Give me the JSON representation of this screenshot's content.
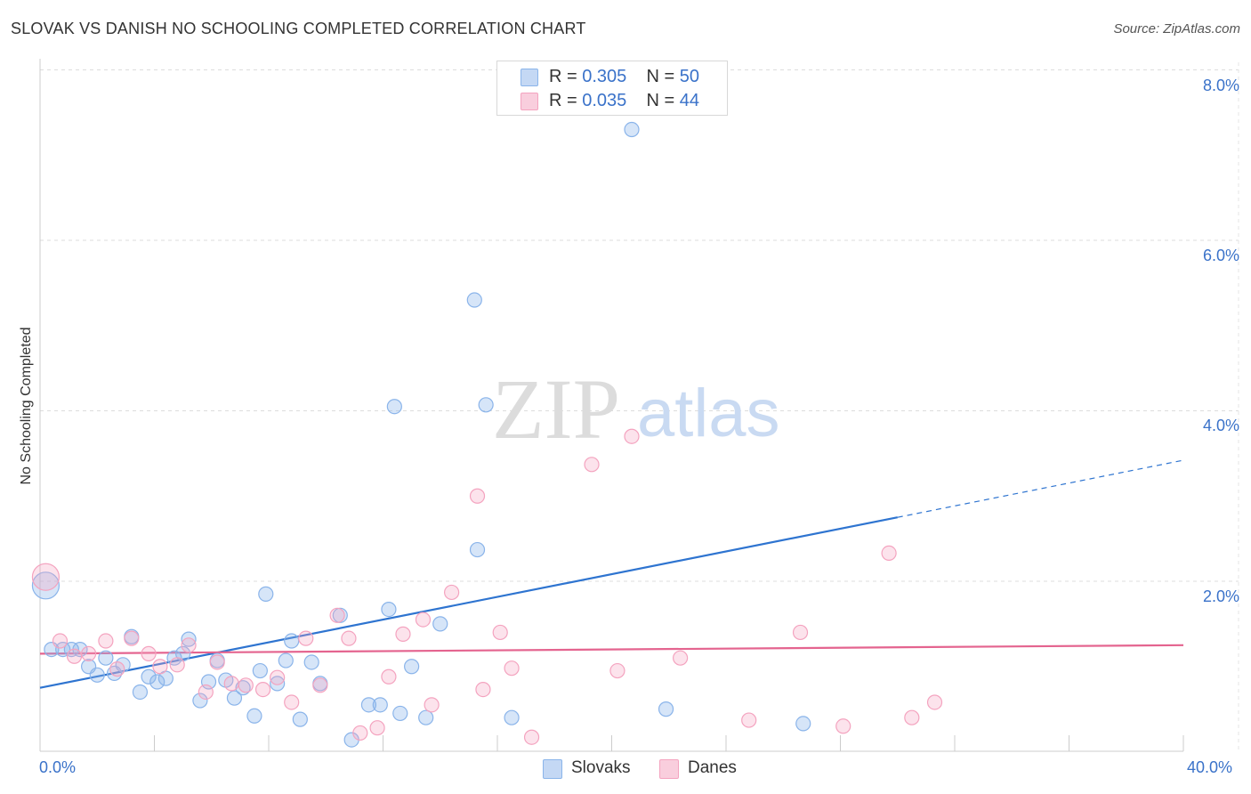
{
  "title": "SLOVAK VS DANISH NO SCHOOLING COMPLETED CORRELATION CHART",
  "source": "Source: ZipAtlas.com",
  "watermark": {
    "zip": "ZIP",
    "atlas": "atlas"
  },
  "legend": {
    "rows": [
      {
        "r_label": "R = ",
        "r_value": "0.305",
        "n_label": "N = ",
        "n_value": "50"
      },
      {
        "r_label": "R = ",
        "r_value": "0.035",
        "n_label": "N = ",
        "n_value": "44"
      }
    ]
  },
  "bottom_legend": [
    "Slovaks",
    "Danes"
  ],
  "chart_data": {
    "type": "scatter",
    "title": "SLOVAK VS DANISH NO SCHOOLING COMPLETED CORRELATION CHART",
    "xlabel": "",
    "ylabel": "No Schooling Completed",
    "xlim": [
      0,
      40
    ],
    "ylim": [
      0,
      8.3
    ],
    "x_tick_labels": [
      "0.0%",
      "40.0%"
    ],
    "y_ticks": [
      2,
      4,
      6,
      8
    ],
    "y_tick_labels": [
      "2.0%",
      "4.0%",
      "6.0%",
      "8.0%"
    ],
    "grid": true,
    "legend_position": "top-center",
    "series": [
      {
        "name": "Slovaks",
        "color": "#8ab4ea",
        "line_color": "#2e74d0",
        "r": 0.305,
        "n": 50,
        "trend": {
          "x0": 0,
          "y0": 0.75,
          "x1": 30,
          "y1": 2.75,
          "dashed_to_x": 40,
          "dashed_to_y": 3.42
        },
        "points": [
          [
            0.2,
            1.95
          ],
          [
            0.4,
            1.2
          ],
          [
            0.8,
            1.2
          ],
          [
            1.1,
            1.2
          ],
          [
            1.4,
            1.2
          ],
          [
            1.7,
            1.0
          ],
          [
            2.0,
            0.9
          ],
          [
            2.3,
            1.1
          ],
          [
            2.6,
            0.92
          ],
          [
            2.9,
            1.02
          ],
          [
            3.2,
            1.35
          ],
          [
            3.5,
            0.7
          ],
          [
            3.8,
            0.88
          ],
          [
            4.1,
            0.82
          ],
          [
            4.4,
            0.86
          ],
          [
            4.7,
            1.1
          ],
          [
            5.0,
            1.15
          ],
          [
            5.2,
            1.32
          ],
          [
            5.6,
            0.6
          ],
          [
            5.9,
            0.82
          ],
          [
            6.2,
            1.07
          ],
          [
            6.5,
            0.84
          ],
          [
            6.8,
            0.63
          ],
          [
            7.1,
            0.75
          ],
          [
            7.5,
            0.42
          ],
          [
            7.7,
            0.95
          ],
          [
            7.9,
            1.85
          ],
          [
            8.3,
            0.8
          ],
          [
            8.6,
            1.07
          ],
          [
            8.8,
            1.3
          ],
          [
            9.1,
            0.38
          ],
          [
            9.5,
            1.05
          ],
          [
            9.8,
            0.8
          ],
          [
            10.5,
            1.6
          ],
          [
            10.9,
            0.14
          ],
          [
            11.5,
            0.55
          ],
          [
            11.9,
            0.55
          ],
          [
            12.2,
            1.67
          ],
          [
            12.4,
            4.05
          ],
          [
            12.6,
            0.45
          ],
          [
            13.0,
            1.0
          ],
          [
            13.5,
            0.4
          ],
          [
            14.0,
            1.5
          ],
          [
            15.2,
            5.3
          ],
          [
            15.3,
            2.37
          ],
          [
            15.6,
            4.07
          ],
          [
            16.5,
            0.4
          ],
          [
            20.7,
            7.3
          ],
          [
            21.9,
            0.5
          ],
          [
            26.7,
            0.33
          ]
        ]
      },
      {
        "name": "Danes",
        "color": "#f4a3bf",
        "line_color": "#e4648f",
        "r": 0.035,
        "n": 44,
        "trend": {
          "x0": 0,
          "y0": 1.15,
          "x1": 40,
          "y1": 1.25
        },
        "points": [
          [
            0.2,
            2.05
          ],
          [
            0.7,
            1.3
          ],
          [
            1.2,
            1.12
          ],
          [
            1.7,
            1.15
          ],
          [
            2.3,
            1.3
          ],
          [
            2.7,
            0.97
          ],
          [
            3.2,
            1.33
          ],
          [
            3.8,
            1.15
          ],
          [
            4.2,
            1.0
          ],
          [
            4.8,
            1.02
          ],
          [
            5.2,
            1.25
          ],
          [
            5.8,
            0.7
          ],
          [
            6.2,
            1.05
          ],
          [
            6.7,
            0.8
          ],
          [
            7.2,
            0.78
          ],
          [
            7.8,
            0.73
          ],
          [
            8.3,
            0.87
          ],
          [
            8.8,
            0.58
          ],
          [
            9.3,
            1.33
          ],
          [
            9.8,
            0.78
          ],
          [
            10.4,
            1.6
          ],
          [
            10.8,
            1.33
          ],
          [
            11.2,
            0.22
          ],
          [
            11.8,
            0.28
          ],
          [
            12.2,
            0.88
          ],
          [
            12.7,
            1.38
          ],
          [
            13.4,
            1.55
          ],
          [
            13.7,
            0.55
          ],
          [
            14.4,
            1.87
          ],
          [
            15.3,
            3.0
          ],
          [
            15.5,
            0.73
          ],
          [
            16.1,
            1.4
          ],
          [
            16.5,
            0.98
          ],
          [
            17.2,
            0.17
          ],
          [
            19.3,
            3.37
          ],
          [
            20.2,
            0.95
          ],
          [
            20.7,
            3.7
          ],
          [
            22.4,
            1.1
          ],
          [
            24.8,
            0.37
          ],
          [
            26.6,
            1.4
          ],
          [
            28.1,
            0.3
          ],
          [
            29.7,
            2.33
          ],
          [
            30.5,
            0.4
          ],
          [
            31.3,
            0.58
          ]
        ]
      }
    ]
  }
}
